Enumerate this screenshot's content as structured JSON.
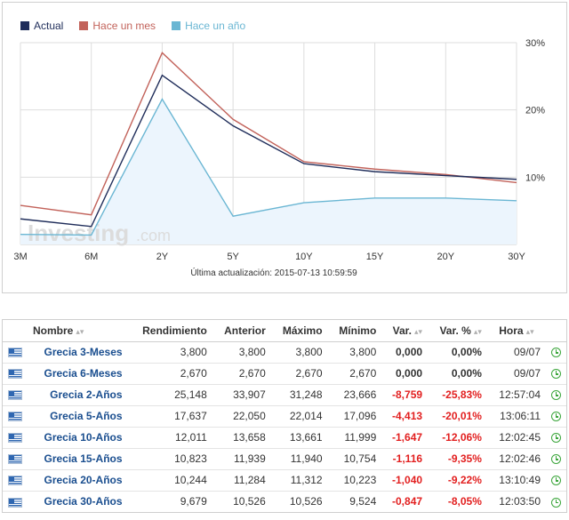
{
  "colors": {
    "actual": "#1f2d5a",
    "hace_un_mes": "#c2625a",
    "hace_un_ano": "#6ab6d3",
    "area_fill": "#ecf5fd",
    "grid": "#dddddd",
    "negative": "#e21f1f",
    "link": "#1a4e8f",
    "clock": "#3aa53a"
  },
  "chart_data": {
    "type": "line",
    "categories": [
      "3M",
      "6M",
      "2Y",
      "5Y",
      "10Y",
      "15Y",
      "20Y",
      "30Y"
    ],
    "series": [
      {
        "name": "Actual",
        "color": "#1f2d5a",
        "values": [
          3.8,
          2.67,
          25.15,
          17.64,
          12.01,
          10.82,
          10.24,
          9.68
        ]
      },
      {
        "name": "Hace un mes",
        "color": "#c2625a",
        "values": [
          5.8,
          4.4,
          28.5,
          18.6,
          12.3,
          11.2,
          10.4,
          9.2
        ]
      },
      {
        "name": "Hace un año",
        "color": "#6ab6d3",
        "values": [
          1.5,
          1.4,
          21.6,
          4.2,
          6.2,
          6.9,
          6.9,
          6.5
        ]
      }
    ],
    "y_ticks": [
      "30%",
      "20%",
      "10%"
    ],
    "y_tick_values": [
      30,
      20,
      10
    ],
    "ylim": [
      0,
      30
    ],
    "yaxis_side": "right",
    "grid": true,
    "legend_position": "top-left",
    "watermark": "Investing",
    "watermark_suffix": ".com",
    "updated_label": "Última actualización: 2015-07-13 10:59:59"
  },
  "table": {
    "headers": {
      "nombre": "Nombre",
      "rendimiento": "Rendimiento",
      "anterior": "Anterior",
      "maximo": "Máximo",
      "minimo": "Mínimo",
      "var": "Var.",
      "var_pct": "Var. %",
      "hora": "Hora"
    },
    "rows": [
      {
        "nombre": "Grecia 3-Meses",
        "rendimiento": "3,800",
        "anterior": "3,800",
        "maximo": "3,800",
        "minimo": "3,800",
        "var": "0,000",
        "var_pct": "0,00%",
        "hora": "09/07",
        "neg": false
      },
      {
        "nombre": "Grecia 6-Meses",
        "rendimiento": "2,670",
        "anterior": "2,670",
        "maximo": "2,670",
        "minimo": "2,670",
        "var": "0,000",
        "var_pct": "0,00%",
        "hora": "09/07",
        "neg": false
      },
      {
        "nombre": "Grecia 2-Años",
        "rendimiento": "25,148",
        "anterior": "33,907",
        "maximo": "31,248",
        "minimo": "23,666",
        "var": "-8,759",
        "var_pct": "-25,83%",
        "hora": "12:57:04",
        "neg": true
      },
      {
        "nombre": "Grecia 5-Años",
        "rendimiento": "17,637",
        "anterior": "22,050",
        "maximo": "22,014",
        "minimo": "17,096",
        "var": "-4,413",
        "var_pct": "-20,01%",
        "hora": "13:06:11",
        "neg": true
      },
      {
        "nombre": "Grecia 10-Años",
        "rendimiento": "12,011",
        "anterior": "13,658",
        "maximo": "13,661",
        "minimo": "11,999",
        "var": "-1,647",
        "var_pct": "-12,06%",
        "hora": "12:02:45",
        "neg": true
      },
      {
        "nombre": "Grecia 15-Años",
        "rendimiento": "10,823",
        "anterior": "11,939",
        "maximo": "11,940",
        "minimo": "10,754",
        "var": "-1,116",
        "var_pct": "-9,35%",
        "hora": "12:02:46",
        "neg": true
      },
      {
        "nombre": "Grecia 20-Años",
        "rendimiento": "10,244",
        "anterior": "11,284",
        "maximo": "11,312",
        "minimo": "10,223",
        "var": "-1,040",
        "var_pct": "-9,22%",
        "hora": "13:10:49",
        "neg": true
      },
      {
        "nombre": "Grecia 30-Años",
        "rendimiento": "9,679",
        "anterior": "10,526",
        "maximo": "10,526",
        "minimo": "9,524",
        "var": "-0,847",
        "var_pct": "-8,05%",
        "hora": "12:03:50",
        "neg": true
      }
    ]
  }
}
